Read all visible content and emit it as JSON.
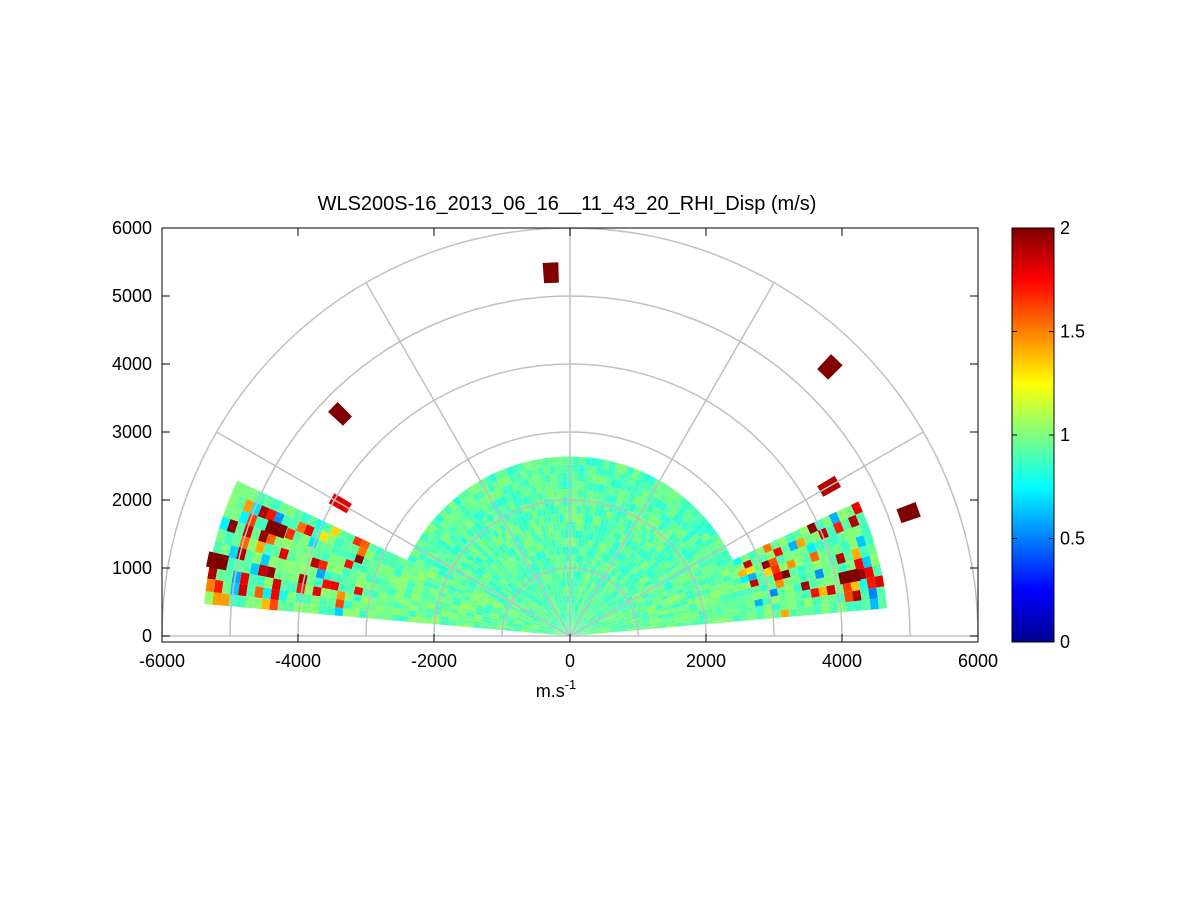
{
  "chart_data": {
    "type": "heatmap",
    "subtype": "polar-rhi-sector",
    "title": "WLS200S-16_2013_06_16__11_43_20_RHI_Disp (m/s)",
    "xlabel": "m.s",
    "xlabel_superscript": "-1",
    "ylabel": "",
    "xlim": [
      -6000,
      6000
    ],
    "ylim": [
      0,
      6000
    ],
    "x_ticks": [
      -6000,
      -4000,
      -2000,
      0,
      2000,
      4000,
      6000
    ],
    "y_ticks": [
      0,
      1000,
      2000,
      3000,
      4000,
      5000,
      6000
    ],
    "range_rings_m": [
      1000,
      2000,
      3000,
      4000,
      5000,
      6000
    ],
    "spoke_angles_deg": [
      0,
      30,
      60,
      90,
      120,
      150,
      180
    ],
    "colorbar": {
      "colormap": "jet",
      "min": 0,
      "max": 2,
      "ticks": [
        0,
        0.5,
        1,
        1.5,
        2
      ]
    },
    "grid": true,
    "field": {
      "description_values": "Dispersion mostly ~0.9-1.0 m/s near origin, higher (up to 2) at far ranges",
      "sectors": [
        {
          "az_deg_from": 5,
          "az_deg_to": 25,
          "range_max_m": 4600,
          "typical_value": 0.95
        },
        {
          "az_deg_from": 25,
          "az_deg_to": 155,
          "range_max_m": 2600,
          "typical_value": 0.92
        },
        {
          "az_deg_from": 155,
          "az_deg_to": 175,
          "range_max_m": 5400,
          "typical_value": 0.95
        }
      ],
      "hotspots": [
        {
          "az_deg": 20,
          "range_m": 5300,
          "value": 2
        },
        {
          "az_deg": 12,
          "range_m": 4200,
          "value": 2
        },
        {
          "az_deg": 30,
          "range_m": 4400,
          "value": 1.9
        },
        {
          "az_deg": 160,
          "range_m": 4600,
          "value": 2
        },
        {
          "az_deg": 168,
          "range_m": 5300,
          "value": 2
        },
        {
          "az_deg": 150,
          "range_m": 3900,
          "value": 1.8
        },
        {
          "az_deg": 93,
          "range_m": 5350,
          "value": 2
        },
        {
          "az_deg": 46,
          "range_m": 5500,
          "value": 2
        },
        {
          "az_deg": 136,
          "range_m": 4700,
          "value": 2
        }
      ]
    }
  }
}
